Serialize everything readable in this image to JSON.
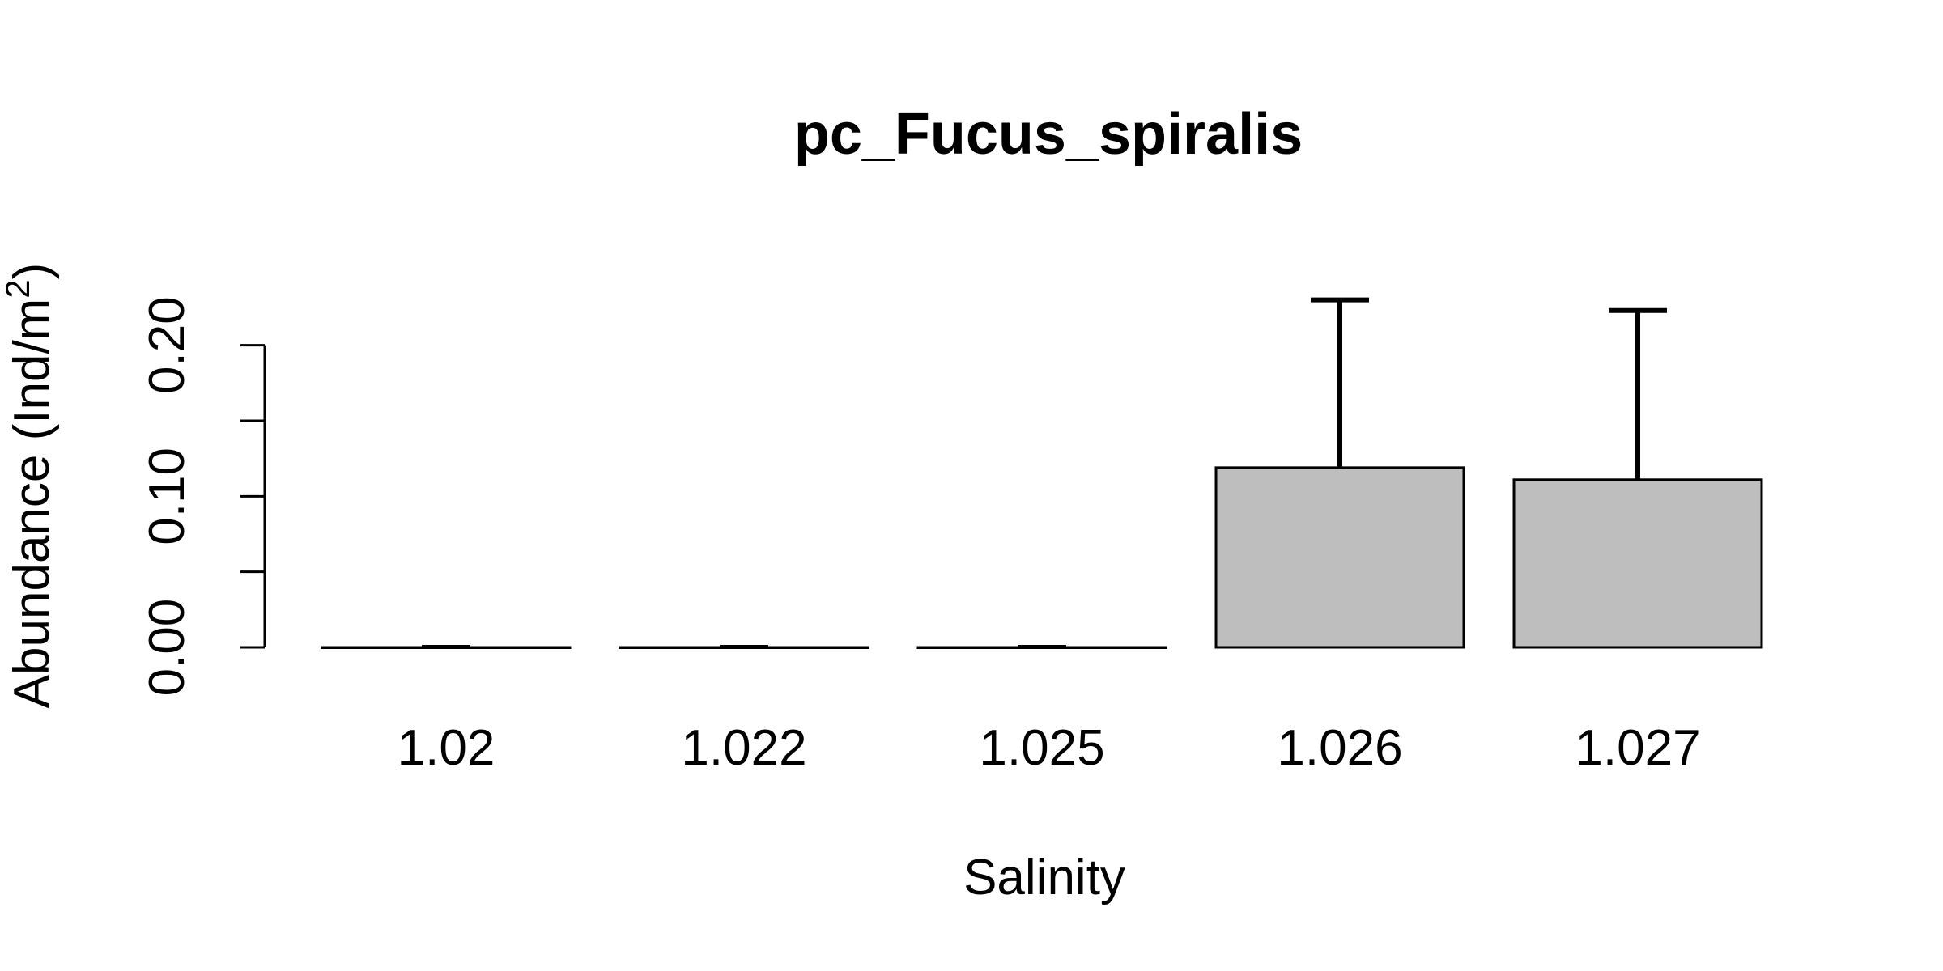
{
  "chart_data": {
    "type": "bar",
    "title": "pc_Fucus_spiralis",
    "xlabel": "Salinity",
    "ylabel": {
      "main": "Abundance (Ind/m",
      "superscript": "2",
      "close": ")"
    },
    "categories": [
      "1.02",
      "1.022",
      "1.025",
      "1.026",
      "1.027"
    ],
    "values": [
      0,
      0,
      0,
      0.119,
      0.111
    ],
    "error_upper": [
      0,
      0,
      0,
      0.23,
      0.223
    ],
    "ylim": [
      0,
      0.24
    ],
    "yticks": [
      0,
      0.05,
      0.1,
      0.15,
      0.2
    ],
    "ytick_labels": [
      "0.00",
      "",
      "0.10",
      "",
      "0.20"
    ],
    "bar_color": "#bebebe",
    "grid": false,
    "legend": "none"
  }
}
